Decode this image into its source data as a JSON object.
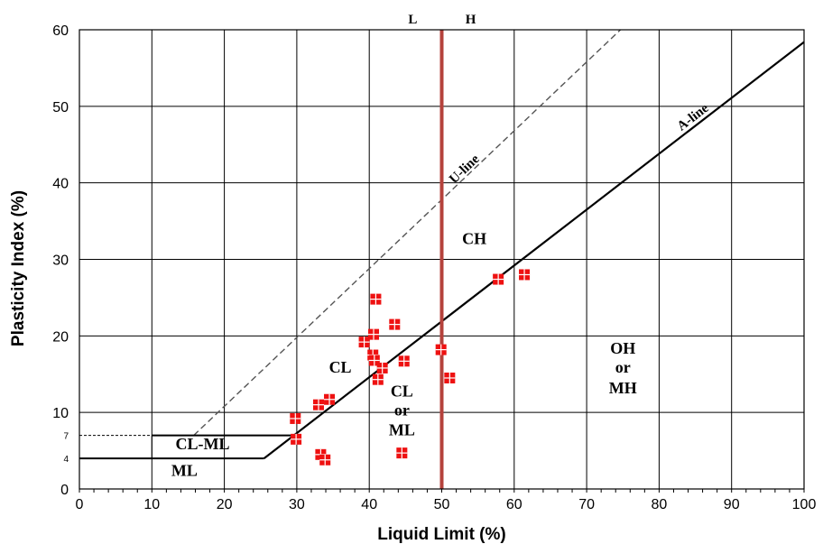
{
  "chart_data": {
    "type": "scatter",
    "title": "",
    "xlabel": "Liquid Limit (%)",
    "ylabel": "Plasticity Index (%)",
    "xlim": [
      0,
      100
    ],
    "ylim": [
      0,
      60
    ],
    "xticks": [
      0,
      10,
      20,
      30,
      40,
      50,
      60,
      70,
      80,
      90,
      100
    ],
    "yticks": [
      0,
      10,
      20,
      30,
      40,
      50,
      60
    ],
    "extra_yticks": [
      4,
      7
    ],
    "grid": true,
    "lines": {
      "a_line": {
        "label": "A-line",
        "equation": "PI = 0.73 (LL - 20)",
        "style": "solid",
        "color": "#000000"
      },
      "u_line": {
        "label": "U-line",
        "equation": "PI = 0.9 (LL - 8)",
        "style": "dashed",
        "color": "#555555"
      },
      "ll_50": {
        "x": 50,
        "color": "#b5423c"
      }
    },
    "boundary_labels": [
      "L",
      "H"
    ],
    "zone_labels": [
      {
        "id": "cl",
        "text": "CL"
      },
      {
        "id": "ch",
        "text": "CH"
      },
      {
        "id": "clml",
        "text": "CL-ML"
      },
      {
        "id": "ml",
        "text": "ML"
      },
      {
        "id": "clorml-1",
        "text": "CL"
      },
      {
        "id": "clorml-2",
        "text": "or"
      },
      {
        "id": "clorml-3",
        "text": "ML"
      },
      {
        "id": "ohmh-1",
        "text": "OH"
      },
      {
        "id": "ohmh-2",
        "text": "or"
      },
      {
        "id": "ohmh-3",
        "text": "MH"
      }
    ],
    "series": [
      {
        "marker_color": "#ee1111",
        "points": [
          {
            "x": 29.8,
            "y": 9.2
          },
          {
            "x": 29.9,
            "y": 6.5
          },
          {
            "x": 33.0,
            "y": 11.0
          },
          {
            "x": 33.3,
            "y": 4.5
          },
          {
            "x": 33.9,
            "y": 3.8
          },
          {
            "x": 34.5,
            "y": 11.7
          },
          {
            "x": 39.3,
            "y": 19.2
          },
          {
            "x": 40.5,
            "y": 17.5
          },
          {
            "x": 40.7,
            "y": 16.8
          },
          {
            "x": 40.6,
            "y": 20.2
          },
          {
            "x": 40.9,
            "y": 24.8
          },
          {
            "x": 41.2,
            "y": 14.3
          },
          {
            "x": 41.8,
            "y": 15.8
          },
          {
            "x": 43.5,
            "y": 21.5
          },
          {
            "x": 44.5,
            "y": 4.7
          },
          {
            "x": 44.8,
            "y": 16.7
          },
          {
            "x": 49.9,
            "y": 18.2
          },
          {
            "x": 51.1,
            "y": 14.5
          },
          {
            "x": 57.8,
            "y": 27.4
          },
          {
            "x": 61.4,
            "y": 28.0
          }
        ]
      }
    ]
  }
}
